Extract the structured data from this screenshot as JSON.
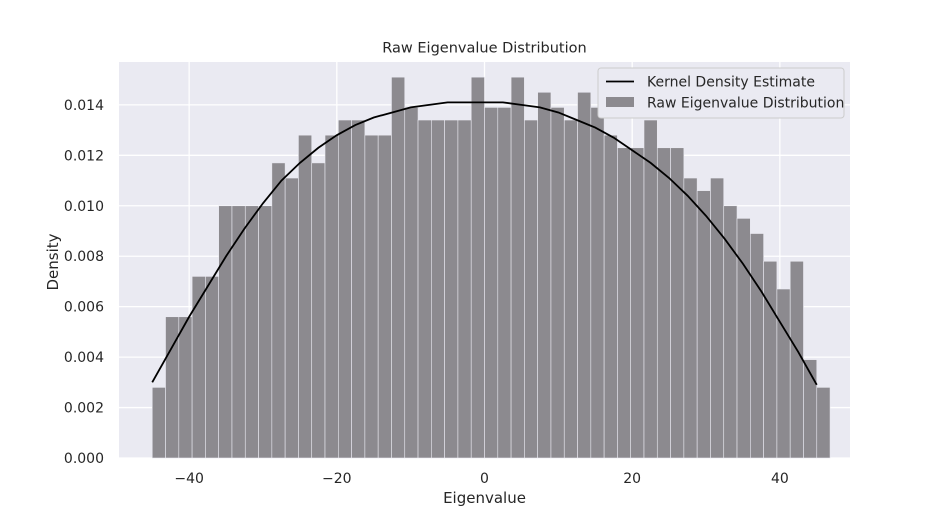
{
  "chart_data": {
    "type": "bar",
    "title": "Raw Eigenvalue Distribution",
    "xlabel": "Eigenvalue",
    "ylabel": "Density",
    "xlim": [
      -49.5,
      49.5
    ],
    "ylim": [
      0,
      0.0157
    ],
    "xticks": [
      -40,
      -20,
      0,
      20,
      40
    ],
    "xtick_labels": [
      "−40",
      "−20",
      "0",
      "20",
      "40"
    ],
    "yticks": [
      0,
      0.002,
      0.004,
      0.006,
      0.008,
      0.01,
      0.012,
      0.014
    ],
    "ytick_labels": [
      "0.000",
      "0.002",
      "0.004",
      "0.006",
      "0.008",
      "0.010",
      "0.012",
      "0.014"
    ],
    "grid": true,
    "legend_position": "top-right",
    "colors": {
      "background": "#eaeaf2",
      "bar": "#8c8a8f",
      "bar_edge": "#eaeaf2",
      "kde_line": "#000000",
      "grid": "#ffffff"
    },
    "series": [
      {
        "name": "Raw Eigenvalue Distribution",
        "kind": "histogram",
        "bin_start": -45,
        "bin_width": 1.8,
        "values": [
          0.0028,
          0.0056,
          0.0056,
          0.0072,
          0.0072,
          0.01,
          0.01,
          0.01,
          0.01,
          0.0117,
          0.0111,
          0.0128,
          0.0117,
          0.0128,
          0.0134,
          0.0134,
          0.0128,
          0.0128,
          0.0151,
          0.0139,
          0.0134,
          0.0134,
          0.0134,
          0.0134,
          0.0151,
          0.0139,
          0.0139,
          0.0151,
          0.0134,
          0.0145,
          0.0139,
          0.0134,
          0.0145,
          0.0139,
          0.0128,
          0.0123,
          0.0123,
          0.0134,
          0.0123,
          0.0123,
          0.0111,
          0.0106,
          0.0111,
          0.01,
          0.0095,
          0.0089,
          0.0078,
          0.0067,
          0.0078,
          0.0039,
          0.0028
        ]
      },
      {
        "name": "Kernel Density Estimate",
        "kind": "line",
        "x": [
          -45,
          -42.5,
          -40,
          -37.5,
          -35,
          -32.5,
          -30,
          -27.5,
          -25,
          -22.5,
          -20,
          -17.5,
          -15,
          -12.5,
          -10,
          -7.5,
          -5,
          -2.5,
          0,
          2.5,
          5,
          7.5,
          10,
          12.5,
          15,
          17.5,
          20,
          22.5,
          25,
          27.5,
          30,
          32.5,
          35,
          37.5,
          40,
          42.5,
          45
        ],
        "y": [
          0.003,
          0.0043,
          0.0056,
          0.0068,
          0.008,
          0.0091,
          0.0101,
          0.011,
          0.0117,
          0.0123,
          0.0128,
          0.0132,
          0.0135,
          0.0137,
          0.0139,
          0.014,
          0.0141,
          0.0141,
          0.0141,
          0.0141,
          0.014,
          0.0139,
          0.0137,
          0.0134,
          0.0131,
          0.0127,
          0.0122,
          0.0117,
          0.0111,
          0.0104,
          0.0096,
          0.0087,
          0.0077,
          0.0066,
          0.0054,
          0.0042,
          0.0029
        ]
      }
    ],
    "legend": [
      {
        "label": "Kernel Density Estimate",
        "kind": "line"
      },
      {
        "label": "Raw Eigenvalue Distribution",
        "kind": "patch"
      }
    ]
  }
}
